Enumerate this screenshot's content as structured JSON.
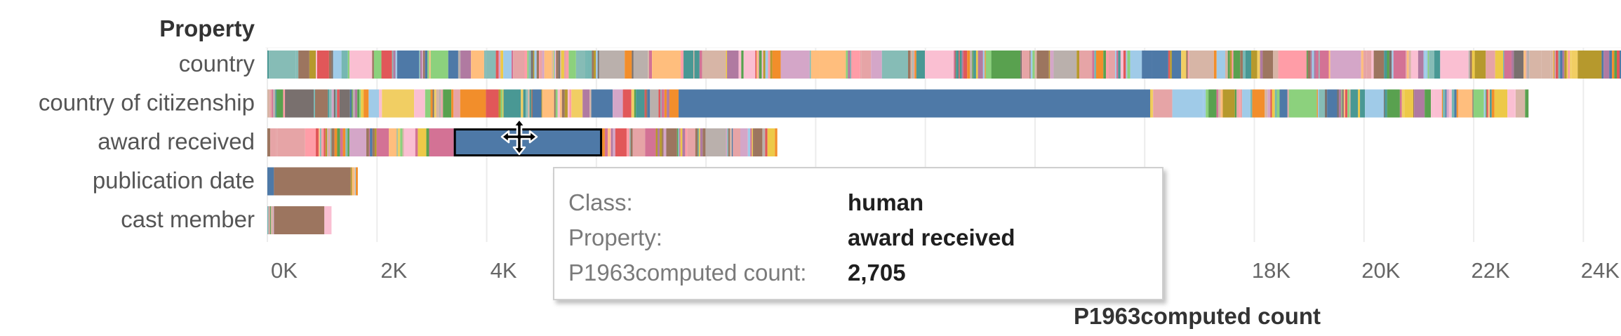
{
  "chart_data": {
    "type": "bar",
    "orientation": "horizontal",
    "stacked": true,
    "title": "",
    "row_header": "Property",
    "xlabel": "P1963computed count",
    "ylabel": "Property",
    "xlim": [
      -200,
      25800
    ],
    "x_ticks": [
      0,
      2000,
      4000,
      6000,
      8000,
      10000,
      12000,
      14000,
      16000,
      18000,
      20000,
      22000,
      24000
    ],
    "x_tick_labels": [
      {
        "value": 0,
        "label": "0K"
      },
      {
        "value": 2000,
        "label": "2K"
      },
      {
        "value": 4000,
        "label": "4K"
      },
      {
        "value": 18000,
        "label": "18K"
      },
      {
        "value": 20000,
        "label": "20K"
      },
      {
        "value": 22000,
        "label": "22K"
      },
      {
        "value": 24000,
        "label": "24K"
      }
    ],
    "grid": true,
    "categories": [
      "country",
      "country of citizenship",
      "award received",
      "publication date",
      "cast member"
    ],
    "totals": [
      25800,
      23000,
      9300,
      1650,
      1170
    ],
    "highlight": {
      "category": "award received",
      "class": "human",
      "start": 3400,
      "value": 2705
    },
    "segments": {
      "country of citizenship": [
        {
          "class": "human",
          "start": 7500,
          "value": 8600
        }
      ],
      "award received": [
        {
          "class": "human",
          "start": 3400,
          "value": 2705
        }
      ]
    }
  },
  "tooltip": {
    "rows": [
      {
        "label": "Class:",
        "value": "human"
      },
      {
        "label": "Property:",
        "value": "award received"
      },
      {
        "label": "P1963computed count:",
        "value": "2,705"
      }
    ]
  },
  "cursor_icon": "move-cursor-icon",
  "colors": {
    "highlight": "#4e79a7",
    "grid": "#ececec",
    "axis_text": "#666666",
    "palette": [
      "#4e79a7",
      "#f28e2b",
      "#e15759",
      "#76b7b2",
      "#59a14f",
      "#edc948",
      "#b07aa1",
      "#ff9da7",
      "#9c755f",
      "#bab0ac",
      "#a0cbe8",
      "#ffbe7d",
      "#8cd17d",
      "#b6992d",
      "#f1ce63",
      "#499894",
      "#86bcb6",
      "#d37295",
      "#fabfd2",
      "#d4a6c8",
      "#9d7660",
      "#d7b5a6",
      "#79706e",
      "#e6a4a6"
    ]
  }
}
